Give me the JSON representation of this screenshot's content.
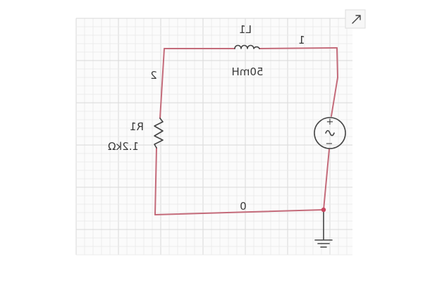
{
  "components": {
    "inductor": {
      "ref": "L1",
      "value": "50mH"
    },
    "resistor": {
      "ref": "R1",
      "value": "1.2kΩ"
    },
    "source": {
      "plus": "+",
      "minus": "−"
    }
  },
  "nodes": {
    "n1": "1",
    "n2": "2",
    "n0": "0"
  },
  "colors": {
    "wire": "#c46b7a",
    "component": "#444444",
    "junction": "#c9445e"
  },
  "corner_button": {
    "icon": "expand-icon"
  }
}
